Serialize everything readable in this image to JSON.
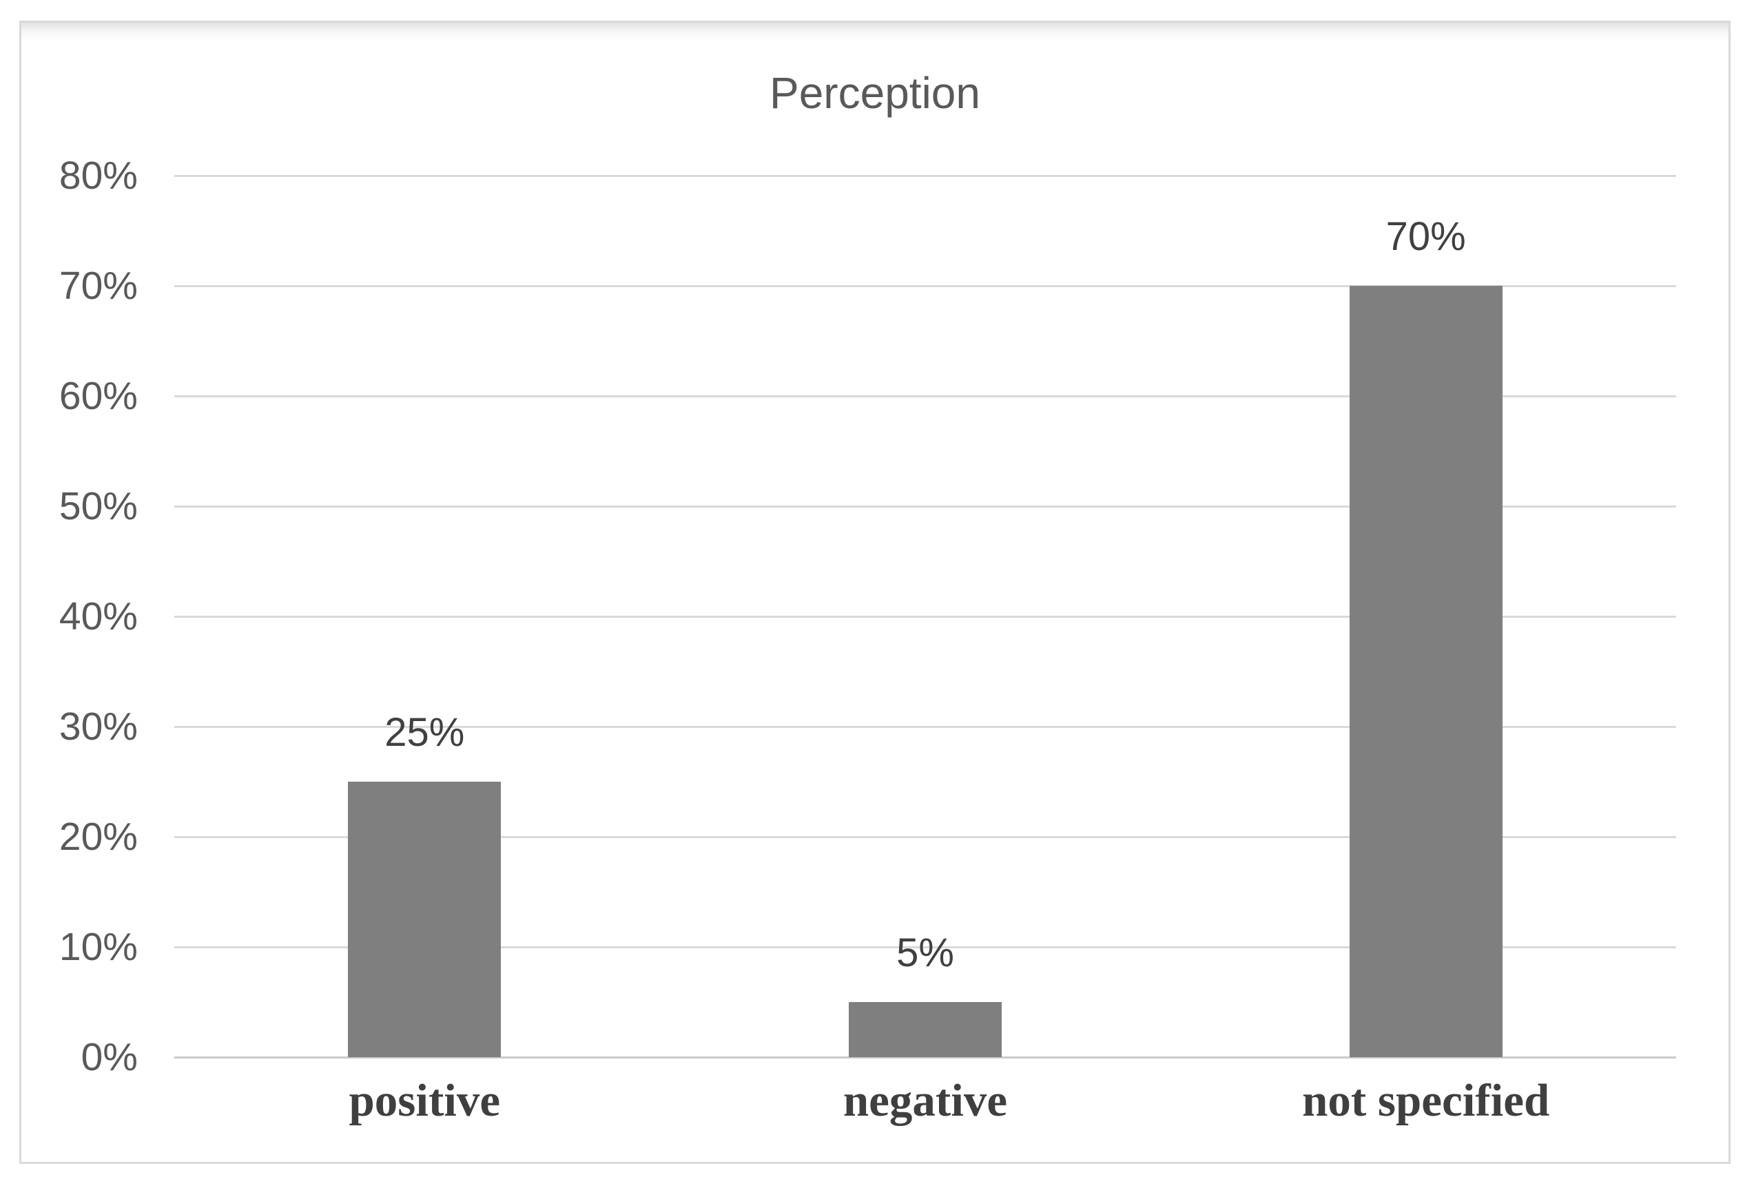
{
  "chart_data": {
    "type": "bar",
    "title": "Perception",
    "categories": [
      "positive",
      "negative",
      "not specified"
    ],
    "values": [
      25,
      5,
      70
    ],
    "data_labels": [
      "25%",
      "5%",
      "70%"
    ],
    "xlabel": "",
    "ylabel": "",
    "ylim": [
      0,
      80
    ],
    "ytick_step": 10,
    "ytick_labels": [
      "0%",
      "10%",
      "20%",
      "30%",
      "40%",
      "50%",
      "60%",
      "70%",
      "80%"
    ],
    "grid": true,
    "legend_position": "none",
    "bar_color": "#7f7f7f",
    "gridline_color": "#d9d9d9",
    "axis_line_color": "#c9c9c9",
    "title_color": "#595959",
    "tick_label_color": "#595959",
    "category_label_color": "#3f3f3f",
    "value_label_color": "#404040",
    "frame_border_color": "#d9d9d9",
    "background_color": "#ffffff"
  }
}
